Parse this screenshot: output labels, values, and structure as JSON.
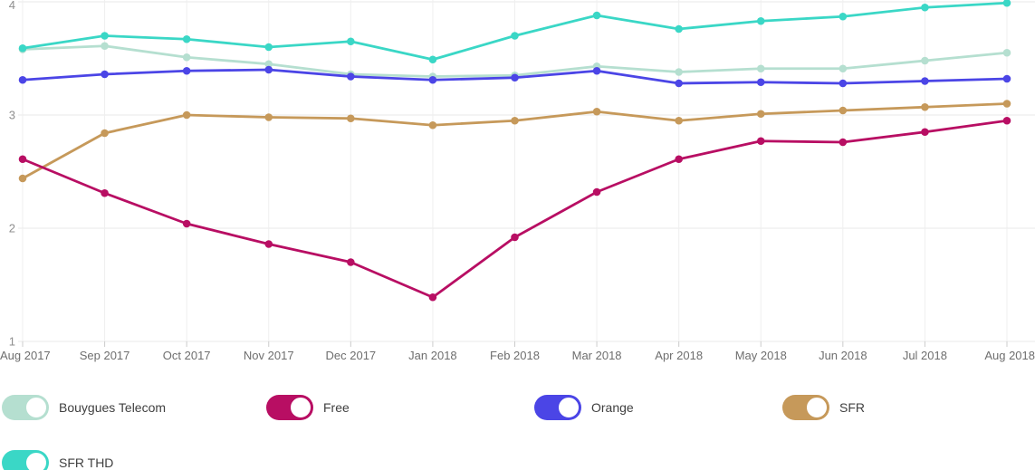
{
  "chart_data": {
    "type": "line",
    "title": "",
    "xlabel": "",
    "ylabel": "",
    "x_labels": [
      "Aug 2017",
      "Sep 2017",
      "Oct 2017",
      "Nov 2017",
      "Dec 2017",
      "Jan 2018",
      "Feb 2018",
      "Mar 2018",
      "Apr 2018",
      "May 2018",
      "Jun 2018",
      "Jul 2018",
      "Aug 2018"
    ],
    "y_ticks": [
      1,
      2,
      3,
      4
    ],
    "ylim": [
      1,
      4
    ],
    "grid": true,
    "legend_position": "bottom",
    "series": [
      {
        "name": "Bouygues Telecom",
        "color": "#B5DFD0",
        "values": [
          3.58,
          3.61,
          3.51,
          3.45,
          3.36,
          3.34,
          3.35,
          3.43,
          3.38,
          3.41,
          3.41,
          3.48,
          3.55
        ]
      },
      {
        "name": "SFR",
        "color": "#C6995A",
        "values": [
          2.44,
          2.84,
          3.0,
          2.98,
          2.97,
          2.91,
          2.95,
          3.03,
          2.95,
          3.01,
          3.04,
          3.07,
          3.1
        ]
      },
      {
        "name": "Orange",
        "color": "#4B45E6",
        "values": [
          3.31,
          3.36,
          3.39,
          3.4,
          3.34,
          3.31,
          3.33,
          3.39,
          3.28,
          3.29,
          3.28,
          3.3,
          3.32
        ]
      },
      {
        "name": "Free",
        "color": "#B80E63",
        "values": [
          2.61,
          2.31,
          2.04,
          1.86,
          1.7,
          1.39,
          1.92,
          2.32,
          2.61,
          2.77,
          2.76,
          2.85,
          2.95
        ]
      },
      {
        "name": "SFR THD",
        "color": "#3AD7C6",
        "values": [
          3.59,
          3.7,
          3.67,
          3.6,
          3.65,
          3.49,
          3.7,
          3.88,
          3.76,
          3.83,
          3.87,
          3.95,
          3.99
        ]
      }
    ]
  },
  "colors": {
    "grid_horizontal": "#e8e8e8",
    "grid_vertical": "#efefef",
    "tick": "#cccccc",
    "y_label_text": "#8f8f8f",
    "x_label_text": "#6e6e6e"
  }
}
